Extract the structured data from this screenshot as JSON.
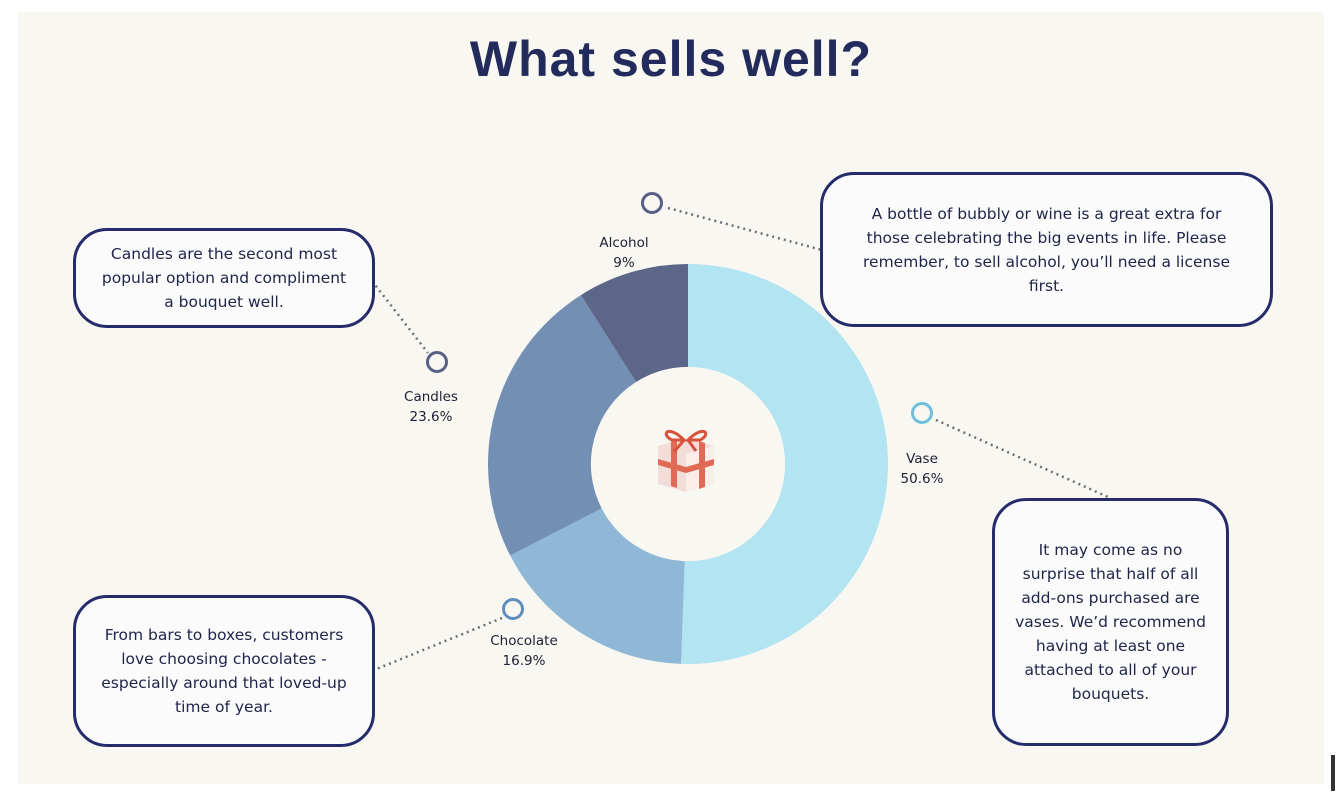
{
  "title": "What sells well?",
  "colors": {
    "vase": "#b2e4f1",
    "chocolate": "#8fb8d6",
    "candles": "#7390b4",
    "alcohol": "#5c6688",
    "border": "#262b6b",
    "background": "#f9f7f1"
  },
  "chart_data": {
    "type": "pie",
    "variant": "donut",
    "title": "What sells well?",
    "slices": [
      {
        "name": "Vase",
        "value": 50.6,
        "label": "50.6%"
      },
      {
        "name": "Chocolate",
        "value": 16.9,
        "label": "16.9%"
      },
      {
        "name": "Candles",
        "value": 23.6,
        "label": "23.6%"
      },
      {
        "name": "Alcohol",
        "value": 9,
        "label": "9%"
      }
    ],
    "center_icon": "gift-icon"
  },
  "callouts": {
    "alcohol": "A bottle of bubbly or wine is a great extra for those celebrating the big events in life. Please remember, to sell alcohol, you’ll need a license first.",
    "candles": "Candles are the second most popular option and compliment a bouquet well.",
    "chocolate": "From bars to boxes, customers love choosing chocolates - especially around that loved-up time of year.",
    "vase": "It may come as no surprise that half of all add-ons purchased are vases. We’d recommend having at least one attached to all of your bouquets."
  }
}
